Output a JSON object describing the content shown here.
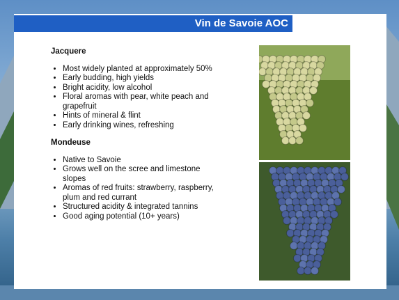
{
  "header": {
    "title": "Vin de Savoie AOC"
  },
  "sections": [
    {
      "heading": "Jacquere",
      "bullets": [
        "Most widely planted at approximately 50%",
        "Early budding, high yields",
        "Bright acidity, low alcohol",
        "Floral aromas with pear, white peach and grapefruit",
        "Hints of mineral & flint",
        "Early drinking wines, refreshing"
      ]
    },
    {
      "heading": "Mondeuse",
      "bullets": [
        "Native to Savoie",
        "Grows well on the scree and limestone slopes",
        "Aromas of red fruits: strawberry, raspberry, plum and red currant",
        "Structured acidity & integrated tannins",
        "Good aging potential (10+ years)"
      ]
    }
  ]
}
